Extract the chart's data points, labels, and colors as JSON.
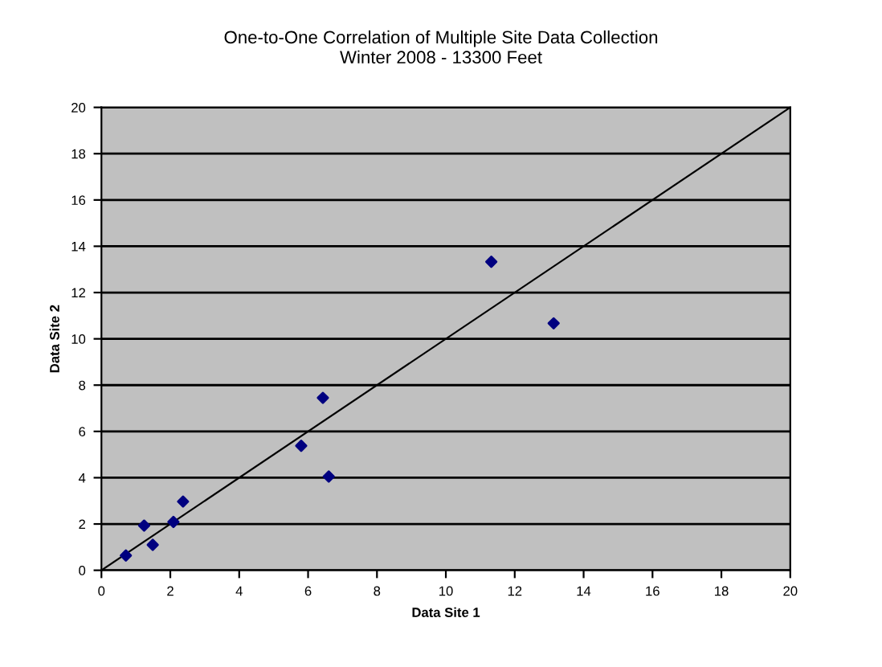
{
  "chart_data": {
    "type": "scatter",
    "title": "One-to-One Correlation of Multiple Site Data Collection",
    "subtitle": "Winter 2008 - 13300 Feet",
    "xlabel": "Data Site 1",
    "ylabel": "Data Site 2",
    "series": [
      {
        "color": "#000080",
        "marker": "diamond",
        "x": [
          0.71,
          1.24,
          1.49,
          2.09,
          2.37,
          5.8,
          6.43,
          6.6,
          11.32,
          13.13
        ],
        "values": [
          0.64,
          1.93,
          1.1,
          2.09,
          2.97,
          5.38,
          7.45,
          4.05,
          13.33,
          10.67
        ]
      },
      {
        "type": "line",
        "color": "#000000",
        "marker": "none",
        "line_style": "solid",
        "x": [
          0,
          20
        ],
        "values": [
          0,
          20
        ]
      }
    ],
    "xlim": [
      0,
      20
    ],
    "ylim": [
      0,
      20
    ],
    "xticks": [
      0,
      2,
      4,
      6,
      8,
      10,
      12,
      14,
      16,
      18,
      20
    ],
    "yticks": [
      0,
      2,
      4,
      6,
      8,
      10,
      12,
      14,
      16,
      18,
      20
    ],
    "grid": "y"
  }
}
